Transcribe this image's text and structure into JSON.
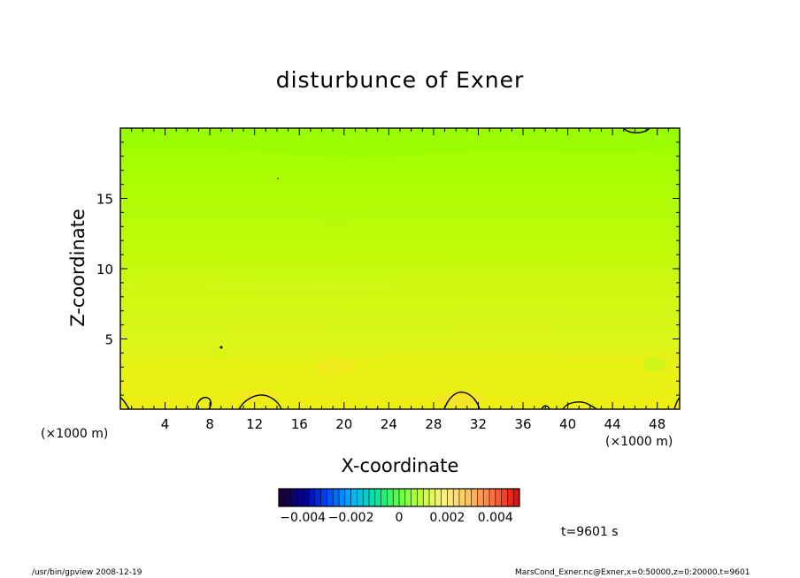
{
  "chart_data": {
    "type": "heatmap",
    "title": "disturbunce of Exner",
    "xlabel": "X-coordinate",
    "ylabel": "Z-coordinate",
    "x_unit": "(×1000 m)",
    "xlim": [
      0,
      50
    ],
    "ylim": [
      0,
      20
    ],
    "x_ticks": [
      4,
      8,
      12,
      16,
      20,
      24,
      28,
      32,
      36,
      40,
      44,
      48
    ],
    "y_ticks": [
      5,
      10,
      15
    ],
    "colorbar": {
      "range": [
        -0.005,
        0.005
      ],
      "tick_values": [
        -0.004,
        -0.002,
        0,
        0.002,
        0.004
      ],
      "tick_labels": [
        "−0.004",
        "−0.002",
        "0",
        "0.002",
        "0.004"
      ],
      "colors": [
        "#1a0033",
        "#0000a0",
        "#0050ff",
        "#00b4ff",
        "#00e4a0",
        "#60ff40",
        "#c8ff40",
        "#fff080",
        "#ffc060",
        "#ff7040",
        "#e01010"
      ]
    },
    "field_color_top": "#9cff00",
    "field_color_bottom": "#f2ef10",
    "time_label": "t=9601 s"
  },
  "footer": {
    "left": "/usr/bin/gpview   2008-12-19",
    "right": "MarsCond_Exner.nc@Exner,x=0:50000,z=0:20000,t=9601"
  }
}
